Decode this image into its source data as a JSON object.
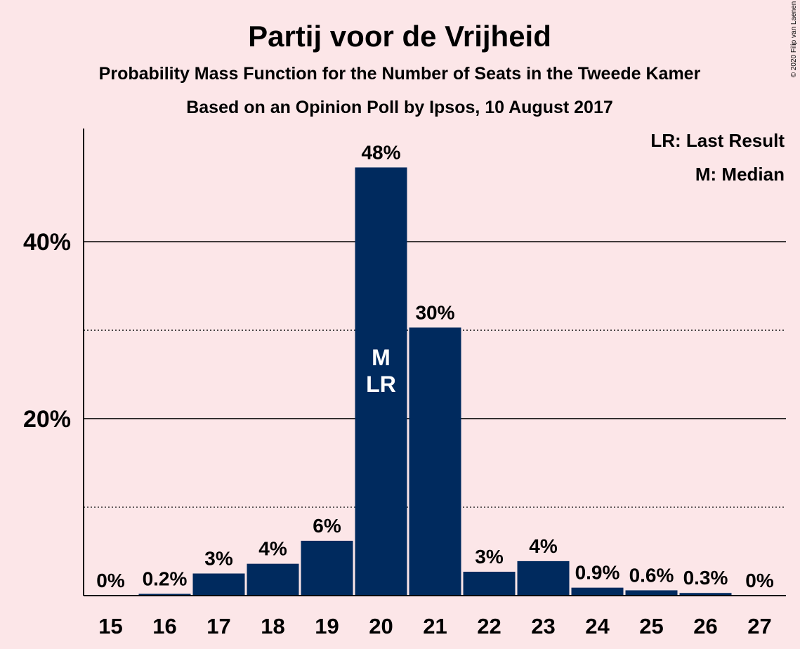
{
  "chart_data": {
    "type": "bar",
    "title": "Partij voor de Vrijheid",
    "subtitle": "Probability Mass Function for the Number of Seats in the Tweede Kamer",
    "subtitle2": "Based on an Opinion Poll by Ipsos, 10 August 2017",
    "categories": [
      "15",
      "16",
      "17",
      "18",
      "19",
      "20",
      "21",
      "22",
      "23",
      "24",
      "25",
      "26",
      "27"
    ],
    "values": [
      0,
      0.2,
      2.5,
      3.6,
      6.2,
      48.4,
      30.3,
      2.7,
      3.9,
      0.9,
      0.6,
      0.3,
      0
    ],
    "data_labels": [
      "0%",
      "0.2%",
      "3%",
      "4%",
      "6%",
      "48%",
      "30%",
      "3%",
      "4%",
      "0.9%",
      "0.6%",
      "0.3%",
      "0%"
    ],
    "ylim": [
      0,
      52.8
    ],
    "y_ticks": [
      {
        "value": 20,
        "label": "20%"
      },
      {
        "value": 40,
        "label": "40%"
      }
    ],
    "minor_gridlines": [
      10,
      30
    ],
    "bar_color": "#002a5e",
    "background_color": "#fce6e8",
    "in_bar_markers": {
      "category": "20",
      "lines": [
        "M",
        "LR"
      ]
    },
    "legend": {
      "position": "top-right",
      "items": [
        "LR: Last Result",
        "M: Median"
      ]
    },
    "copyright": "© 2020 Filip van Laenen"
  }
}
